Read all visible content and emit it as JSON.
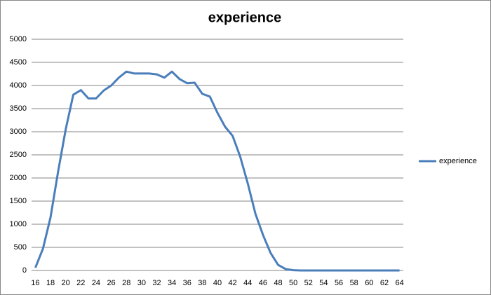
{
  "chart_data": {
    "type": "line",
    "title": "experience",
    "categories": [
      "16",
      null,
      "18",
      null,
      "20",
      null,
      "22",
      null,
      "24",
      null,
      "26",
      null,
      "28",
      null,
      "30",
      null,
      "32",
      null,
      "34",
      null,
      "36",
      null,
      "38",
      null,
      "40",
      null,
      "42",
      null,
      "44",
      null,
      "46",
      null,
      "48",
      null,
      "50",
      null,
      "52",
      null,
      "54",
      null,
      "56",
      null,
      "58",
      null,
      "60",
      null,
      "62",
      null,
      "64"
    ],
    "series": [
      {
        "name": "experience",
        "color": "#4a7ebb",
        "values": [
          60,
          470,
          1150,
          2140,
          3050,
          3800,
          3900,
          3720,
          3720,
          3890,
          4000,
          4170,
          4300,
          4260,
          4260,
          4260,
          4240,
          4170,
          4300,
          4140,
          4050,
          4060,
          3820,
          3760,
          3410,
          3110,
          2910,
          2460,
          1880,
          1230,
          770,
          380,
          120,
          30,
          5,
          0,
          0,
          0,
          0,
          0,
          0,
          0,
          0,
          0,
          0,
          0,
          0,
          0,
          0
        ]
      }
    ],
    "ylim": [
      0,
      5000
    ],
    "yticks": [
      0,
      500,
      1000,
      1500,
      2000,
      2500,
      3000,
      3500,
      4000,
      4500,
      5000
    ],
    "grid": true,
    "legend": "right"
  }
}
